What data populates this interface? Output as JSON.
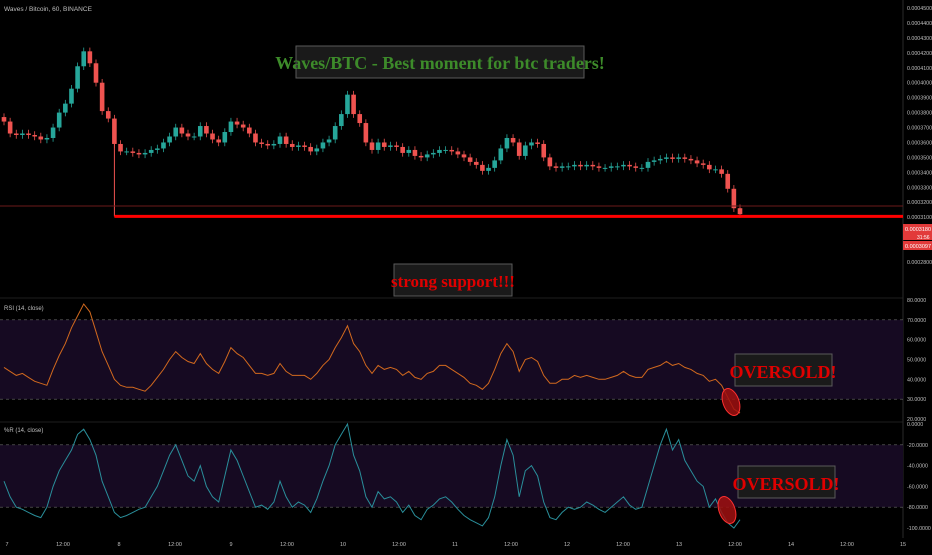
{
  "symbol_label": "Waves / Bitcoin, 60, BINANCE",
  "colors": {
    "background": "#000000",
    "bull": "#26a69a",
    "bear": "#ef5350",
    "support": "#ff0000",
    "rsi_line": "#d2691e",
    "wr_line": "#2a8f9b",
    "band_fill": "#160a22",
    "band_line": "#6a6a6a",
    "title_text": "#3d8b2a",
    "ann_red": "#e00000",
    "ann_box": "#1a1a1a",
    "ann_border": "#5a5a5a",
    "axis_text": "#bfbfbf"
  },
  "annotations": {
    "title": "Waves/BTC - Best moment for btc traders!",
    "support": "strong support!!!",
    "rsi_oversold": "OVERSOLD!",
    "wr_oversold": "OVERSOLD!"
  },
  "price_scale": {
    "ticks": [
      "0.0004500",
      "0.0004400",
      "0.0004300",
      "0.0004200",
      "0.0004100",
      "0.0004000",
      "0.0003900",
      "0.0003800",
      "0.0003700",
      "0.0003600",
      "0.0003500",
      "0.0003400",
      "0.0003300",
      "0.0003200",
      "0.0003100",
      "0.0003000",
      "0.0002900",
      "0.0002800"
    ],
    "tag_upper": "0.0003180",
    "tag_mid": "31:56",
    "tag_lower": "0.0003097"
  },
  "x_axis_labels": [
    "7",
    "12:00",
    "8",
    "12:00",
    "9",
    "12:00",
    "10",
    "12:00",
    "11",
    "12:00",
    "12",
    "12:00",
    "13",
    "12:00",
    "14",
    "12:00",
    "15"
  ],
  "chart_data": [
    {
      "type": "candlestick",
      "title": "Waves / Bitcoin, 60, BINANCE",
      "ylim": [
        0.00028,
        0.00045
      ],
      "support_level": 0.0003105,
      "close_series": [
        0.000374,
        0.000366,
        0.000365,
        0.000366,
        0.000365,
        0.000364,
        0.000362,
        0.000363,
        0.00037,
        0.00038,
        0.000386,
        0.000396,
        0.000411,
        0.000421,
        0.000413,
        0.0004,
        0.000381,
        0.000376,
        0.000359,
        0.000354,
        0.000354,
        0.000353,
        0.000352,
        0.000353,
        0.000355,
        0.000356,
        0.00036,
        0.000364,
        0.00037,
        0.000366,
        0.000364,
        0.000364,
        0.000371,
        0.000366,
        0.000362,
        0.00036,
        0.000367,
        0.000374,
        0.000372,
        0.00037,
        0.000366,
        0.00036,
        0.000359,
        0.000358,
        0.000359,
        0.000364,
        0.000359,
        0.000357,
        0.000358,
        0.000357,
        0.000354,
        0.000356,
        0.00036,
        0.000362,
        0.000371,
        0.000379,
        0.000392,
        0.000379,
        0.000373,
        0.00036,
        0.000355,
        0.00036,
        0.000357,
        0.000358,
        0.000357,
        0.000353,
        0.000355,
        0.000351,
        0.00035,
        0.000352,
        0.000353,
        0.000355,
        0.000355,
        0.000354,
        0.000352,
        0.00035,
        0.000347,
        0.000345,
        0.000341,
        0.000343,
        0.000348,
        0.000356,
        0.000363,
        0.00036,
        0.000351,
        0.000358,
        0.00036,
        0.000359,
        0.00035,
        0.000344,
        0.000343,
        0.000344,
        0.000344,
        0.000345,
        0.000344,
        0.000345,
        0.000344,
        0.000343,
        0.000343,
        0.000344,
        0.000344,
        0.000345,
        0.000344,
        0.000343,
        0.000343,
        0.000347,
        0.000348,
        0.000349,
        0.00035,
        0.000349,
        0.00035,
        0.000349,
        0.000348,
        0.000346,
        0.000345,
        0.000342,
        0.000342,
        0.000339,
        0.000329,
        0.000316,
        0.000312
      ]
    },
    {
      "type": "line",
      "title": "RSI (14, close)",
      "ylim": [
        20,
        80
      ],
      "bands": [
        30,
        70
      ],
      "ticks": [
        "80.0000",
        "70.0000",
        "60.0000",
        "50.0000",
        "40.0000",
        "30.0000",
        "20.0000"
      ],
      "values": [
        46,
        44,
        42,
        43,
        41,
        39,
        38,
        37,
        45,
        52,
        58,
        66,
        72,
        78,
        74,
        64,
        54,
        47,
        40,
        37,
        36,
        36,
        35,
        34,
        37,
        41,
        45,
        50,
        54,
        51,
        49,
        48,
        53,
        48,
        45,
        43,
        49,
        56,
        53,
        51,
        47,
        43,
        43,
        42,
        43,
        48,
        44,
        42,
        42,
        42,
        40,
        43,
        47,
        50,
        56,
        61,
        67,
        58,
        54,
        47,
        43,
        47,
        45,
        46,
        45,
        42,
        44,
        41,
        40,
        43,
        44,
        47,
        47,
        45,
        43,
        41,
        38,
        37,
        35,
        38,
        45,
        53,
        58,
        54,
        44,
        50,
        51,
        49,
        42,
        38,
        38,
        40,
        40,
        42,
        41,
        42,
        41,
        40,
        40,
        41,
        42,
        44,
        42,
        41,
        41,
        45,
        46,
        47,
        49,
        47,
        48,
        46,
        45,
        43,
        42,
        39,
        40,
        37,
        31,
        25,
        23
      ]
    },
    {
      "type": "line",
      "title": "%R (14, close)",
      "ylim": [
        -100,
        0
      ],
      "bands": [
        -80,
        -20
      ],
      "ticks": [
        "0.0000",
        "-20.0000",
        "-40.0000",
        "-60.0000",
        "-80.0000",
        "-100.0000"
      ],
      "values": [
        -55,
        -70,
        -80,
        -82,
        -85,
        -88,
        -90,
        -80,
        -60,
        -45,
        -35,
        -25,
        -10,
        -5,
        -15,
        -30,
        -55,
        -70,
        -85,
        -90,
        -88,
        -85,
        -82,
        -80,
        -70,
        -60,
        -45,
        -30,
        -20,
        -35,
        -50,
        -55,
        -40,
        -60,
        -70,
        -75,
        -50,
        -25,
        -35,
        -50,
        -65,
        -80,
        -78,
        -82,
        -75,
        -55,
        -70,
        -80,
        -75,
        -78,
        -85,
        -72,
        -55,
        -40,
        -20,
        -10,
        0,
        -30,
        -45,
        -70,
        -80,
        -65,
        -72,
        -70,
        -75,
        -85,
        -78,
        -88,
        -92,
        -82,
        -78,
        -72,
        -70,
        -75,
        -82,
        -88,
        -92,
        -95,
        -98,
        -90,
        -70,
        -40,
        -15,
        -30,
        -70,
        -45,
        -40,
        -50,
        -75,
        -90,
        -92,
        -85,
        -80,
        -82,
        -80,
        -75,
        -78,
        -82,
        -85,
        -80,
        -75,
        -70,
        -78,
        -82,
        -80,
        -60,
        -40,
        -20,
        -5,
        -25,
        -15,
        -35,
        -45,
        -55,
        -60,
        -80,
        -72,
        -85,
        -95,
        -100,
        -92
      ]
    }
  ]
}
